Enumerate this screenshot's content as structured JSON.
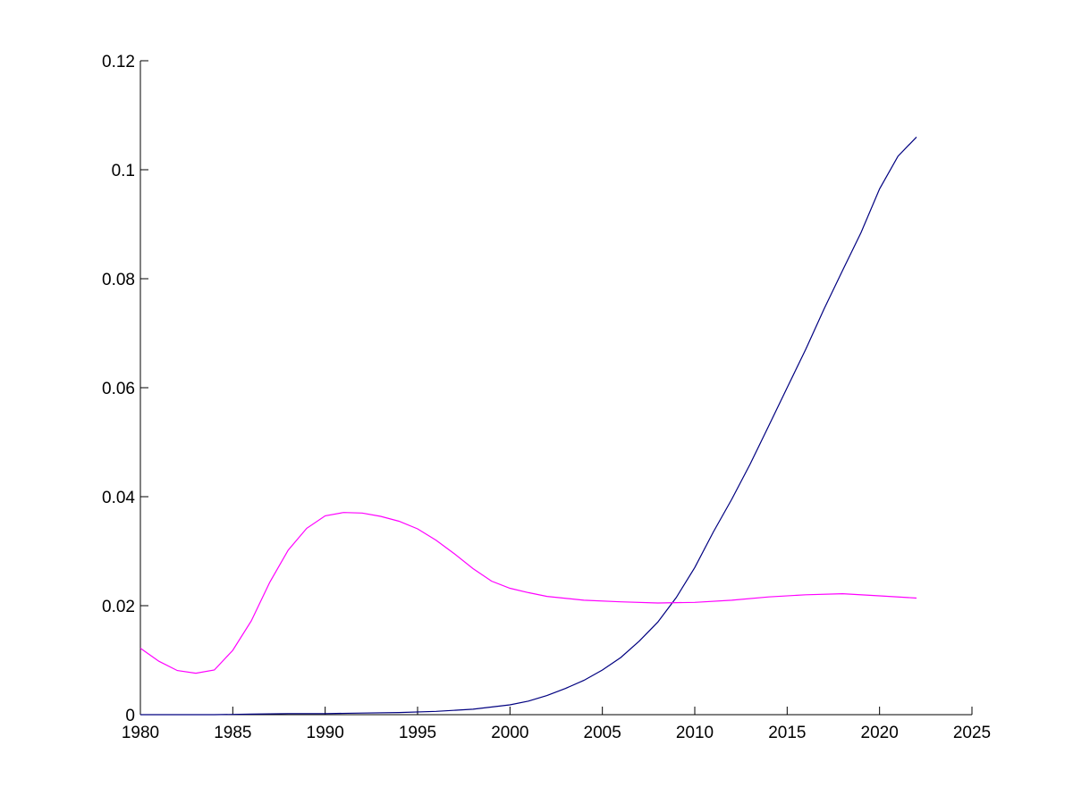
{
  "chart_data": {
    "type": "line",
    "title": "",
    "xlabel": "",
    "ylabel": "",
    "xlim": [
      1980,
      2025
    ],
    "ylim": [
      0,
      0.12
    ],
    "xticks": [
      "1980",
      "1985",
      "1990",
      "1995",
      "2000",
      "2005",
      "2010",
      "2015",
      "2020",
      "2025"
    ],
    "yticks": [
      "0",
      "0.02",
      "0.04",
      "0.06",
      "0.08",
      "0.1",
      "0.12"
    ],
    "grid": false,
    "legend": "none",
    "series": [
      {
        "color": "#000080",
        "x": [
          1980,
          1982,
          1984,
          1986,
          1988,
          1990,
          1992,
          1994,
          1996,
          1998,
          2000,
          2001,
          2002,
          2003,
          2004,
          2005,
          2006,
          2007,
          2008,
          2009,
          2010,
          2011,
          2012,
          2013,
          2014,
          2015,
          2016,
          2017,
          2018,
          2019,
          2020,
          2021,
          2022
        ],
        "y": [
          0.0,
          0.0,
          0.0,
          0.0001,
          0.0002,
          0.0002,
          0.0003,
          0.0004,
          0.0006,
          0.001,
          0.0018,
          0.0025,
          0.0035,
          0.0048,
          0.0063,
          0.0082,
          0.0105,
          0.0135,
          0.017,
          0.0215,
          0.027,
          0.0335,
          0.0395,
          0.046,
          0.053,
          0.06,
          0.067,
          0.0745,
          0.0815,
          0.0885,
          0.0965,
          0.1025,
          0.106
        ]
      },
      {
        "color": "#ff00ff",
        "x": [
          1980,
          1981,
          1982,
          1983,
          1984,
          1985,
          1986,
          1987,
          1988,
          1989,
          1990,
          1991,
          1992,
          1993,
          1994,
          1995,
          1996,
          1997,
          1998,
          1999,
          2000,
          2001,
          2002,
          2004,
          2006,
          2008,
          2010,
          2012,
          2014,
          2016,
          2018,
          2020,
          2022
        ],
        "y": [
          0.0122,
          0.0098,
          0.0081,
          0.0076,
          0.0082,
          0.0118,
          0.0172,
          0.0243,
          0.0302,
          0.0342,
          0.0365,
          0.0371,
          0.037,
          0.0364,
          0.0355,
          0.0341,
          0.032,
          0.0295,
          0.0268,
          0.0245,
          0.0232,
          0.0224,
          0.0217,
          0.021,
          0.0207,
          0.0205,
          0.0206,
          0.021,
          0.0216,
          0.022,
          0.0222,
          0.0218,
          0.0214
        ]
      }
    ]
  }
}
